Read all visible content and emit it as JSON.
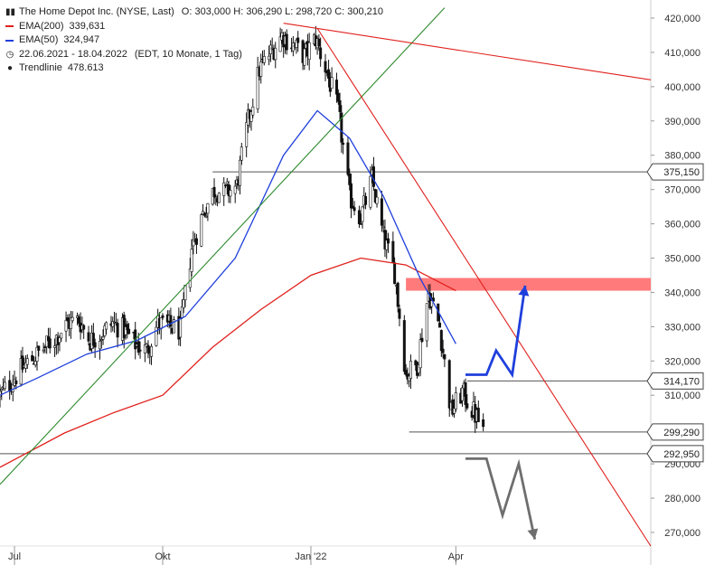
{
  "legend": {
    "title": "The Home Depot Inc. (NYSE, Last)",
    "ohlc": "O: 303,000  H: 306,290  L: 298,720  C: 300,210",
    "ema200_label": "EMA(200)",
    "ema200_value": "339,631",
    "ema50_label": "EMA(50)",
    "ema50_value": "324,947",
    "period": "22.06.2021 - 18.04.2022",
    "period_info": "(EDT, 10 Monate, 1 Tag)",
    "trendline_label": "Trendlinie",
    "trendline_value": "478.613"
  },
  "colors": {
    "ema200": "#e0201c",
    "ema50": "#1f3fdc",
    "trend_green": "#2e8b2e",
    "trend_red": "#e0201c",
    "resistance_zone": "#ff7b7b",
    "arrow_up": "#1f3fdc",
    "arrow_down": "#6e6e6e",
    "candles": "#111111",
    "levels": "#555555"
  },
  "chart_data": {
    "type": "candlestick",
    "title": "The Home Depot Inc. (NYSE, Last)",
    "ylim": [
      265,
      423
    ],
    "y_ticks": [
      "420,000",
      "410,000",
      "400,000",
      "390,000",
      "380,000",
      "370,000",
      "360,000",
      "350,000",
      "340,000",
      "330,000",
      "320,000",
      "310,000",
      "290,000",
      "280,000",
      "270,000"
    ],
    "y_tick_values": [
      420,
      410,
      400,
      390,
      380,
      370,
      360,
      350,
      340,
      330,
      320,
      310,
      290,
      280,
      270
    ],
    "x_ticks": [
      "Jul",
      "Okt",
      "Jan '22",
      "Apr"
    ],
    "x_tick_dates": [
      "2021-07-01",
      "2021-10-01",
      "2022-01-01",
      "2022-04-01"
    ],
    "x_range": [
      "2021-06-22",
      "2022-07-31"
    ],
    "price_levels": [
      {
        "label": "375,150",
        "value": 375.15
      },
      {
        "label": "314,170",
        "value": 314.17
      },
      {
        "label": "299,290",
        "value": 299.29
      },
      {
        "label": "292,950",
        "value": 292.95
      }
    ],
    "resistance_zone": [
      340.5,
      344.2
    ],
    "closes": [
      [
        "2021-06-22",
        310
      ],
      [
        "2021-06-29",
        314
      ],
      [
        "2021-07-06",
        318
      ],
      [
        "2021-07-13",
        321
      ],
      [
        "2021-07-20",
        324
      ],
      [
        "2021-07-27",
        327
      ],
      [
        "2021-08-03",
        331
      ],
      [
        "2021-08-10",
        332
      ],
      [
        "2021-08-17",
        326
      ],
      [
        "2021-08-24",
        328
      ],
      [
        "2021-08-31",
        331
      ],
      [
        "2021-09-07",
        329
      ],
      [
        "2021-09-14",
        325
      ],
      [
        "2021-09-21",
        323
      ],
      [
        "2021-09-28",
        331
      ],
      [
        "2021-10-05",
        330
      ],
      [
        "2021-10-12",
        329
      ],
      [
        "2021-10-19",
        353
      ],
      [
        "2021-10-26",
        363
      ],
      [
        "2021-11-02",
        370
      ],
      [
        "2021-11-09",
        369
      ],
      [
        "2021-11-16",
        371
      ],
      [
        "2021-11-23",
        390
      ],
      [
        "2021-11-30",
        405
      ],
      [
        "2021-12-07",
        410
      ],
      [
        "2021-12-14",
        415
      ],
      [
        "2021-12-21",
        412
      ],
      [
        "2021-12-28",
        409
      ],
      [
        "2022-01-04",
        414
      ],
      [
        "2022-01-11",
        404
      ],
      [
        "2022-01-18",
        393
      ],
      [
        "2022-01-25",
        368
      ],
      [
        "2022-02-01",
        362
      ],
      [
        "2022-02-08",
        373
      ],
      [
        "2022-02-15",
        356
      ],
      [
        "2022-02-22",
        346
      ],
      [
        "2022-03-01",
        316
      ],
      [
        "2022-03-08",
        319
      ],
      [
        "2022-03-15",
        340
      ],
      [
        "2022-03-22",
        330
      ],
      [
        "2022-03-29",
        305
      ],
      [
        "2022-04-05",
        311
      ],
      [
        "2022-04-12",
        305
      ],
      [
        "2022-04-18",
        300.21
      ]
    ],
    "ema200": [
      [
        "2021-06-22",
        289
      ],
      [
        "2021-08-01",
        299
      ],
      [
        "2021-09-01",
        305
      ],
      [
        "2021-10-01",
        310
      ],
      [
        "2021-11-01",
        324
      ],
      [
        "2021-12-01",
        335
      ],
      [
        "2022-01-01",
        345
      ],
      [
        "2022-02-01",
        350
      ],
      [
        "2022-03-01",
        348
      ],
      [
        "2022-04-01",
        340.5
      ]
    ],
    "ema50": [
      [
        "2021-06-22",
        310
      ],
      [
        "2021-07-15",
        315
      ],
      [
        "2021-08-15",
        322
      ],
      [
        "2021-09-15",
        326
      ],
      [
        "2021-10-15",
        333
      ],
      [
        "2021-11-15",
        350
      ],
      [
        "2021-12-15",
        380
      ],
      [
        "2022-01-05",
        393
      ],
      [
        "2022-01-25",
        385
      ],
      [
        "2022-02-15",
        368
      ],
      [
        "2022-03-10",
        344
      ],
      [
        "2022-04-01",
        325
      ]
    ],
    "trendlines": [
      {
        "name": "Trendlinie",
        "color": "green",
        "from": [
          "2021-06-22",
          284
        ],
        "to": [
          "2022-03-25",
          423
        ]
      },
      {
        "color": "red",
        "from": [
          "2021-12-15",
          418.5
        ],
        "to": [
          "2022-07-31",
          402
        ]
      },
      {
        "color": "red",
        "from": [
          "2022-01-05",
          417
        ],
        "to": [
          "2022-07-31",
          266
        ]
      }
    ],
    "projection_up": [
      [
        "2022-04-07",
        316
      ],
      [
        "2022-04-20",
        316
      ],
      [
        "2022-04-26",
        323
      ],
      [
        "2022-05-06",
        316
      ],
      [
        "2022-05-14",
        342
      ]
    ],
    "projection_down": [
      [
        "2022-04-07",
        291.5
      ],
      [
        "2022-04-20",
        291.5
      ],
      [
        "2022-04-30",
        275
      ],
      [
        "2022-05-10",
        290
      ],
      [
        "2022-05-20",
        268
      ]
    ]
  }
}
